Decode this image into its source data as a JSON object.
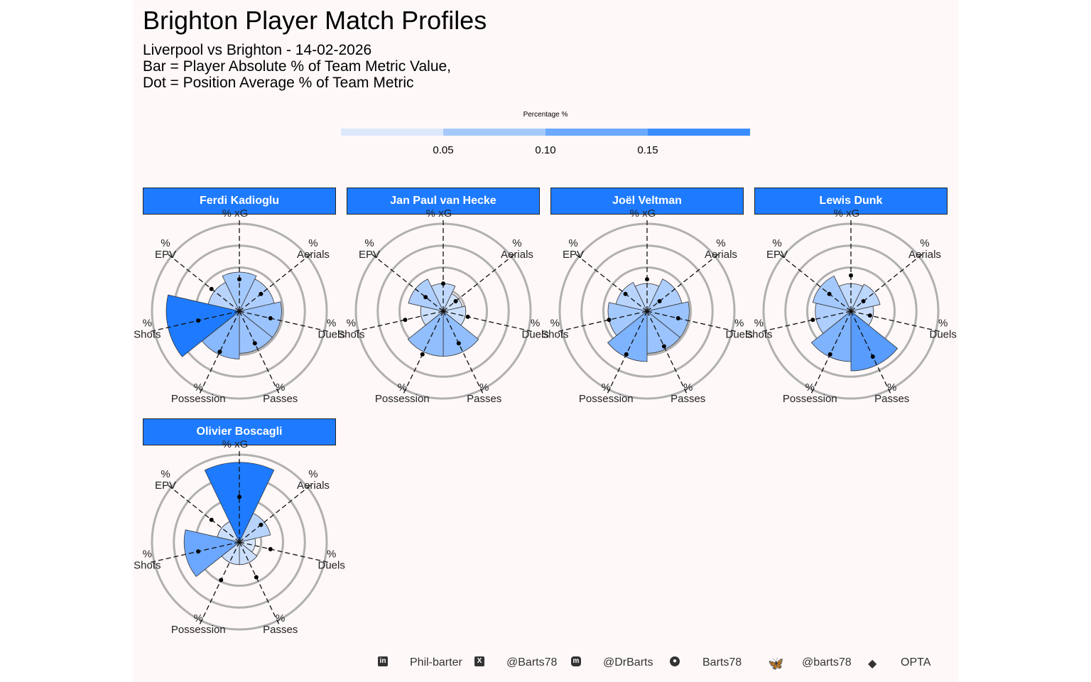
{
  "title": "Brighton Player Match Profiles",
  "subtitle_lines": [
    "Liverpool vs Brighton - 14-02-2026",
    "Bar = Player Absolute % of Team Metric Value,",
    "Dot = Position Average % of Team Metric"
  ],
  "legend": {
    "title": "Percentage %",
    "ticks": [
      "0.05",
      "0.10",
      "0.15"
    ],
    "colors": [
      "#dce8fb",
      "#a6c9fb",
      "#6aa9fd",
      "#3a8dfd"
    ]
  },
  "colors": {
    "strip": "#1e7bff",
    "grid": "#b0b0b0",
    "panel_bg": "#fff8f8"
  },
  "chart_data": {
    "type": "polar-bar",
    "metrics": [
      "% xG",
      "% Aerials",
      "% Duels",
      "% Passes",
      "% Possession",
      "% Shots",
      "% EPV"
    ],
    "fill_scale_limits": [
      0,
      0.2
    ],
    "players": [
      {
        "name": "Ferdi Kadioglu",
        "values": [
          0.06,
          0.05,
          0.07,
          0.07,
          0.09,
          0.21,
          0.04
        ],
        "position_avg": [
          0.04,
          0.03,
          0.04,
          0.05,
          0.08,
          0.07,
          0.05
        ]
      },
      {
        "name": "Jan Paul van Hecke",
        "values": [
          0.03,
          0.015,
          0.02,
          0.08,
          0.08,
          0.02,
          0.05
        ],
        "position_avg": [
          0.03,
          0.01,
          0.025,
          0.05,
          0.09,
          0.06,
          0.02
        ]
      },
      {
        "name": "Joël Veltman",
        "values": [
          0.03,
          0.05,
          0.07,
          0.07,
          0.1,
          0.06,
          0.04
        ],
        "position_avg": [
          0.04,
          0.01,
          0.04,
          0.06,
          0.09,
          0.06,
          0.03
        ]
      },
      {
        "name": "Lewis Dunk",
        "values": [
          0.03,
          0.035,
          0.02,
          0.14,
          0.1,
          0.05,
          0.06
        ],
        "position_avg": [
          0.05,
          0.01,
          0.015,
          0.1,
          0.09,
          0.06,
          0.03
        ]
      },
      {
        "name": "Olivier Boscagli",
        "values": [
          0.25,
          0.04,
          0.01,
          0.02,
          0.02,
          0.12,
          0.02
        ],
        "position_avg": [
          0.08,
          0.03,
          0.04,
          0.06,
          0.07,
          0.07,
          0.05
        ]
      }
    ]
  },
  "footer": {
    "linkedin_icon": "linkedin-icon",
    "linkedin": "Phil-barter",
    "x_icon": "x-icon",
    "x": "@Barts78",
    "mastodon_icon": "mastodon-icon",
    "mastodon": "@DrBarts",
    "github_icon": "github-icon",
    "github": "Barts78",
    "bluesky_icon": "bluesky-icon",
    "bluesky": "@barts78",
    "dropbox_icon": "dropbox-icon",
    "source": "OPTA"
  }
}
